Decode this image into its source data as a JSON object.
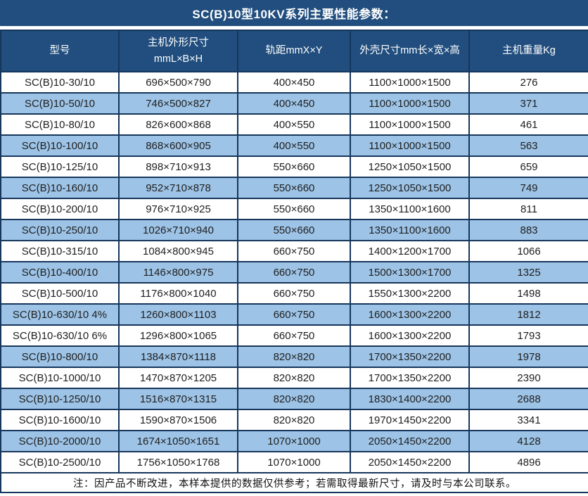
{
  "title": "SC(B)10型10KV系列主要性能参数：",
  "colors": {
    "header_bg": "#214e7e",
    "row_alt_bg": "#9dc3e6",
    "row_bg": "#ffffff",
    "border": "#16365c",
    "header_text": "#ffffff",
    "data_text": "#1f1f1f"
  },
  "table": {
    "headers": {
      "model": "型号",
      "dims_line1": "主机外形尺寸",
      "dims_line2": "mmL×B×H",
      "rail": "轨距mmX×Y",
      "shell": "外壳尺寸mm长×宽×高",
      "weight": "主机重量Kg"
    },
    "rows": [
      [
        "SC(B)10-30/10",
        "696×500×790",
        "400×450",
        "1100×1000×1500",
        "276"
      ],
      [
        "SC(B)10-50/10",
        "746×500×827",
        "400×450",
        "1100×1000×1500",
        "371"
      ],
      [
        "SC(B)10-80/10",
        "826×600×868",
        "400×550",
        "1100×1000×1500",
        "461"
      ],
      [
        "SC(B)10-100/10",
        "868×600×905",
        "400×550",
        "1100×1000×1500",
        "563"
      ],
      [
        "SC(B)10-125/10",
        "898×710×913",
        "550×660",
        "1250×1050×1500",
        "659"
      ],
      [
        "SC(B)10-160/10",
        "952×710×878",
        "550×660",
        "1250×1050×1500",
        "749"
      ],
      [
        "SC(B)10-200/10",
        "976×710×925",
        "550×660",
        "1350×1100×1600",
        "811"
      ],
      [
        "SC(B)10-250/10",
        "1026×710×940",
        "550×660",
        "1350×1100×1600",
        "883"
      ],
      [
        "SC(B)10-315/10",
        "1084×800×945",
        "660×750",
        "1400×1200×1700",
        "1066"
      ],
      [
        "SC(B)10-400/10",
        "1146×800×975",
        "660×750",
        "1500×1300×1700",
        "1325"
      ],
      [
        "SC(B)10-500/10",
        "1176×800×1040",
        "660×750",
        "1550×1300×2200",
        "1498"
      ],
      [
        "SC(B)10-630/10 4%",
        "1260×800×1103",
        "660×750",
        "1600×1300×2200",
        "1812"
      ],
      [
        "SC(B)10-630/10 6%",
        "1296×800×1065",
        "660×750",
        "1600×1300×2200",
        "1793"
      ],
      [
        "SC(B)10-800/10",
        "1384×870×1118",
        "820×820",
        "1700×1350×2200",
        "1978"
      ],
      [
        "SC(B)10-1000/10",
        "1470×870×1205",
        "820×820",
        "1700×1350×2200",
        "2390"
      ],
      [
        "SC(B)10-1250/10",
        "1516×870×1315",
        "820×820",
        "1830×1400×2200",
        "2688"
      ],
      [
        "SC(B)10-1600/10",
        "1590×870×1506",
        "820×820",
        "1970×1450×2200",
        "3341"
      ],
      [
        "SC(B)10-2000/10",
        "1674×1050×1651",
        "1070×1000",
        "2050×1450×2200",
        "4128"
      ],
      [
        "SC(B)10-2500/10",
        "1756×1050×1768",
        "1070×1000",
        "2050×1450×2200",
        "4896"
      ]
    ],
    "note": "注：因产品不断改进，本样本提供的数据仅供参考；若需取得最新尺寸，请及时与本公司联系。"
  }
}
